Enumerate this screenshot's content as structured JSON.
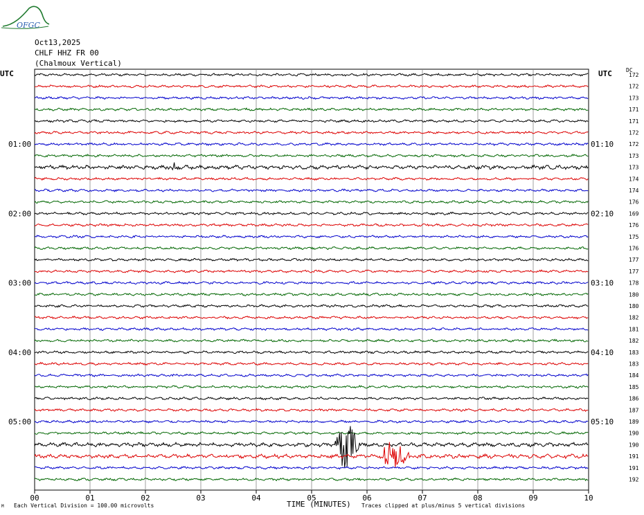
{
  "logo": {
    "text": "OFGC",
    "color": "#1f7a2e",
    "text_color": "#2a5fb0"
  },
  "header": {
    "date": "Oct13,2025",
    "station": "CHLF HHZ FR 00",
    "location": "(Chalmoux Vertical)"
  },
  "left_axis_title": "UTC",
  "right_axis_title": "UTC",
  "dc_title": "DC",
  "footer": {
    "scale_note": "Each Vertical Division =  100.00 microvolts",
    "clip_note": "Traces clipped at plus/minus 5 vertical divisions",
    "corner_mark": "M"
  },
  "chart_data": {
    "type": "line",
    "subtype": "helicorder",
    "xlabel": "TIME (MINUTES)",
    "xlim": [
      0,
      10
    ],
    "x_ticks": [
      "00",
      "01",
      "02",
      "03",
      "04",
      "05",
      "06",
      "07",
      "08",
      "09",
      "10"
    ],
    "minutes_per_line": 10,
    "trace_colors": [
      "#000000",
      "#dd0000",
      "#0000cc",
      "#006600"
    ],
    "grid": true,
    "left_time_labels": [
      {
        "line": 6,
        "text": "01:00"
      },
      {
        "line": 12,
        "text": "02:00"
      },
      {
        "line": 18,
        "text": "03:00"
      },
      {
        "line": 24,
        "text": "04:00"
      },
      {
        "line": 30,
        "text": "05:00"
      }
    ],
    "right_time_labels": [
      {
        "line": 6,
        "text": "01:10"
      },
      {
        "line": 12,
        "text": "02:10"
      },
      {
        "line": 18,
        "text": "03:10"
      },
      {
        "line": 24,
        "text": "04:10"
      },
      {
        "line": 30,
        "text": "05:10"
      }
    ],
    "dc_offsets": [
      "172",
      "172",
      "173",
      "171",
      "171",
      "172",
      "172",
      "173",
      "173",
      "174",
      "174",
      "176",
      "169",
      "176",
      "175",
      "176",
      "177",
      "177",
      "178",
      "180",
      "180",
      "182",
      "181",
      "182",
      "183",
      "183",
      "184",
      "185",
      "186",
      "187",
      "189",
      "190",
      "190",
      "191",
      "191",
      "192"
    ],
    "events": [
      {
        "line": 8,
        "start_min": 2.45,
        "end_min": 2.65,
        "amplitude_div": 1.0
      },
      {
        "line": 32,
        "start_min": 5.4,
        "end_min": 6.1,
        "amplitude_div": 5.0
      },
      {
        "line": 33,
        "start_min": 6.2,
        "end_min": 7.0,
        "amplitude_div": 3.2
      }
    ]
  }
}
